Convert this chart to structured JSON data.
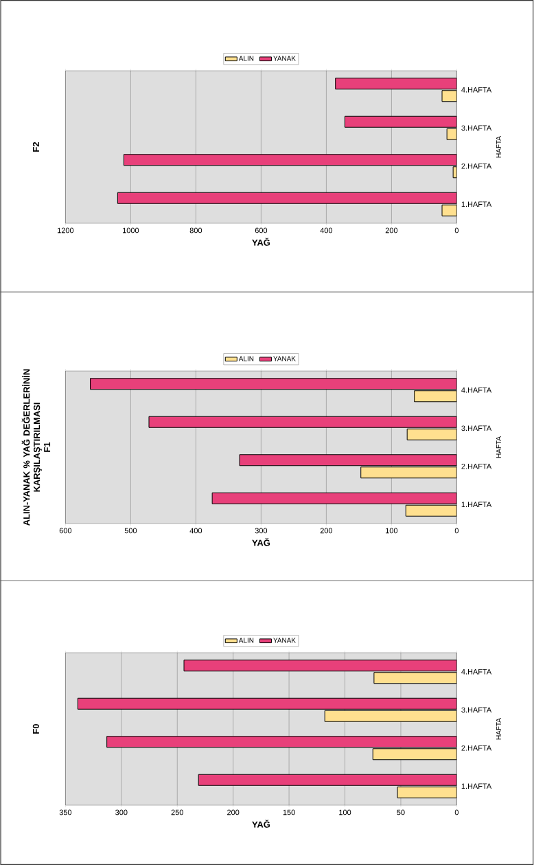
{
  "chart_data": [
    {
      "type": "bar",
      "orientation": "horizontal",
      "title": "F2",
      "xlabel": "YAĞ",
      "ylabel": "HAFTA",
      "categories": [
        "4.HAFTA",
        "3.HAFTA",
        "2.HAFTA",
        "1.HAFTA"
      ],
      "series": [
        {
          "name": "ALIN",
          "color": "#ffe08f",
          "values": [
            45,
            30,
            11,
            45
          ]
        },
        {
          "name": "YANAK",
          "color": "#e8407a",
          "values": [
            372,
            343,
            1021,
            1040
          ]
        }
      ],
      "xlim": [
        1200,
        0
      ],
      "xticks": [
        1200,
        1000,
        800,
        600,
        400,
        200,
        0
      ],
      "grid": "x",
      "legend": "top"
    },
    {
      "type": "bar",
      "orientation": "horizontal",
      "title": "ALIN-YANAK % YAĞ DEĞERLERİNİN KARŞILAŞTIRILMASI",
      "subtitle": "F1",
      "xlabel": "YAĞ",
      "ylabel": "HAFTA",
      "categories": [
        "4.HAFTA",
        "3.HAFTA",
        "2.HAFTA",
        "1.HAFTA"
      ],
      "series": [
        {
          "name": "ALIN",
          "color": "#ffe08f",
          "values": [
            65,
            76,
            147,
            78
          ]
        },
        {
          "name": "YANAK",
          "color": "#e8407a",
          "values": [
            562,
            472,
            333,
            375
          ]
        }
      ],
      "xlim": [
        600,
        0
      ],
      "xticks": [
        600,
        500,
        400,
        300,
        200,
        100,
        0
      ],
      "grid": "x",
      "legend": "top"
    },
    {
      "type": "bar",
      "orientation": "horizontal",
      "title": "F0",
      "xlabel": "YAĞ",
      "ylabel": "HAFTA",
      "categories": [
        "4.HAFTA",
        "3.HAFTA",
        "2.HAFTA",
        "1.HAFTA"
      ],
      "series": [
        {
          "name": "ALIN",
          "color": "#ffe08f",
          "values": [
            74,
            118,
            75,
            53
          ]
        },
        {
          "name": "YANAK",
          "color": "#e8407a",
          "values": [
            244,
            339,
            313,
            231
          ]
        }
      ],
      "xlim": [
        350,
        0
      ],
      "xticks": [
        350,
        300,
        250,
        200,
        150,
        100,
        50,
        0
      ],
      "grid": "x",
      "legend": "top"
    }
  ]
}
